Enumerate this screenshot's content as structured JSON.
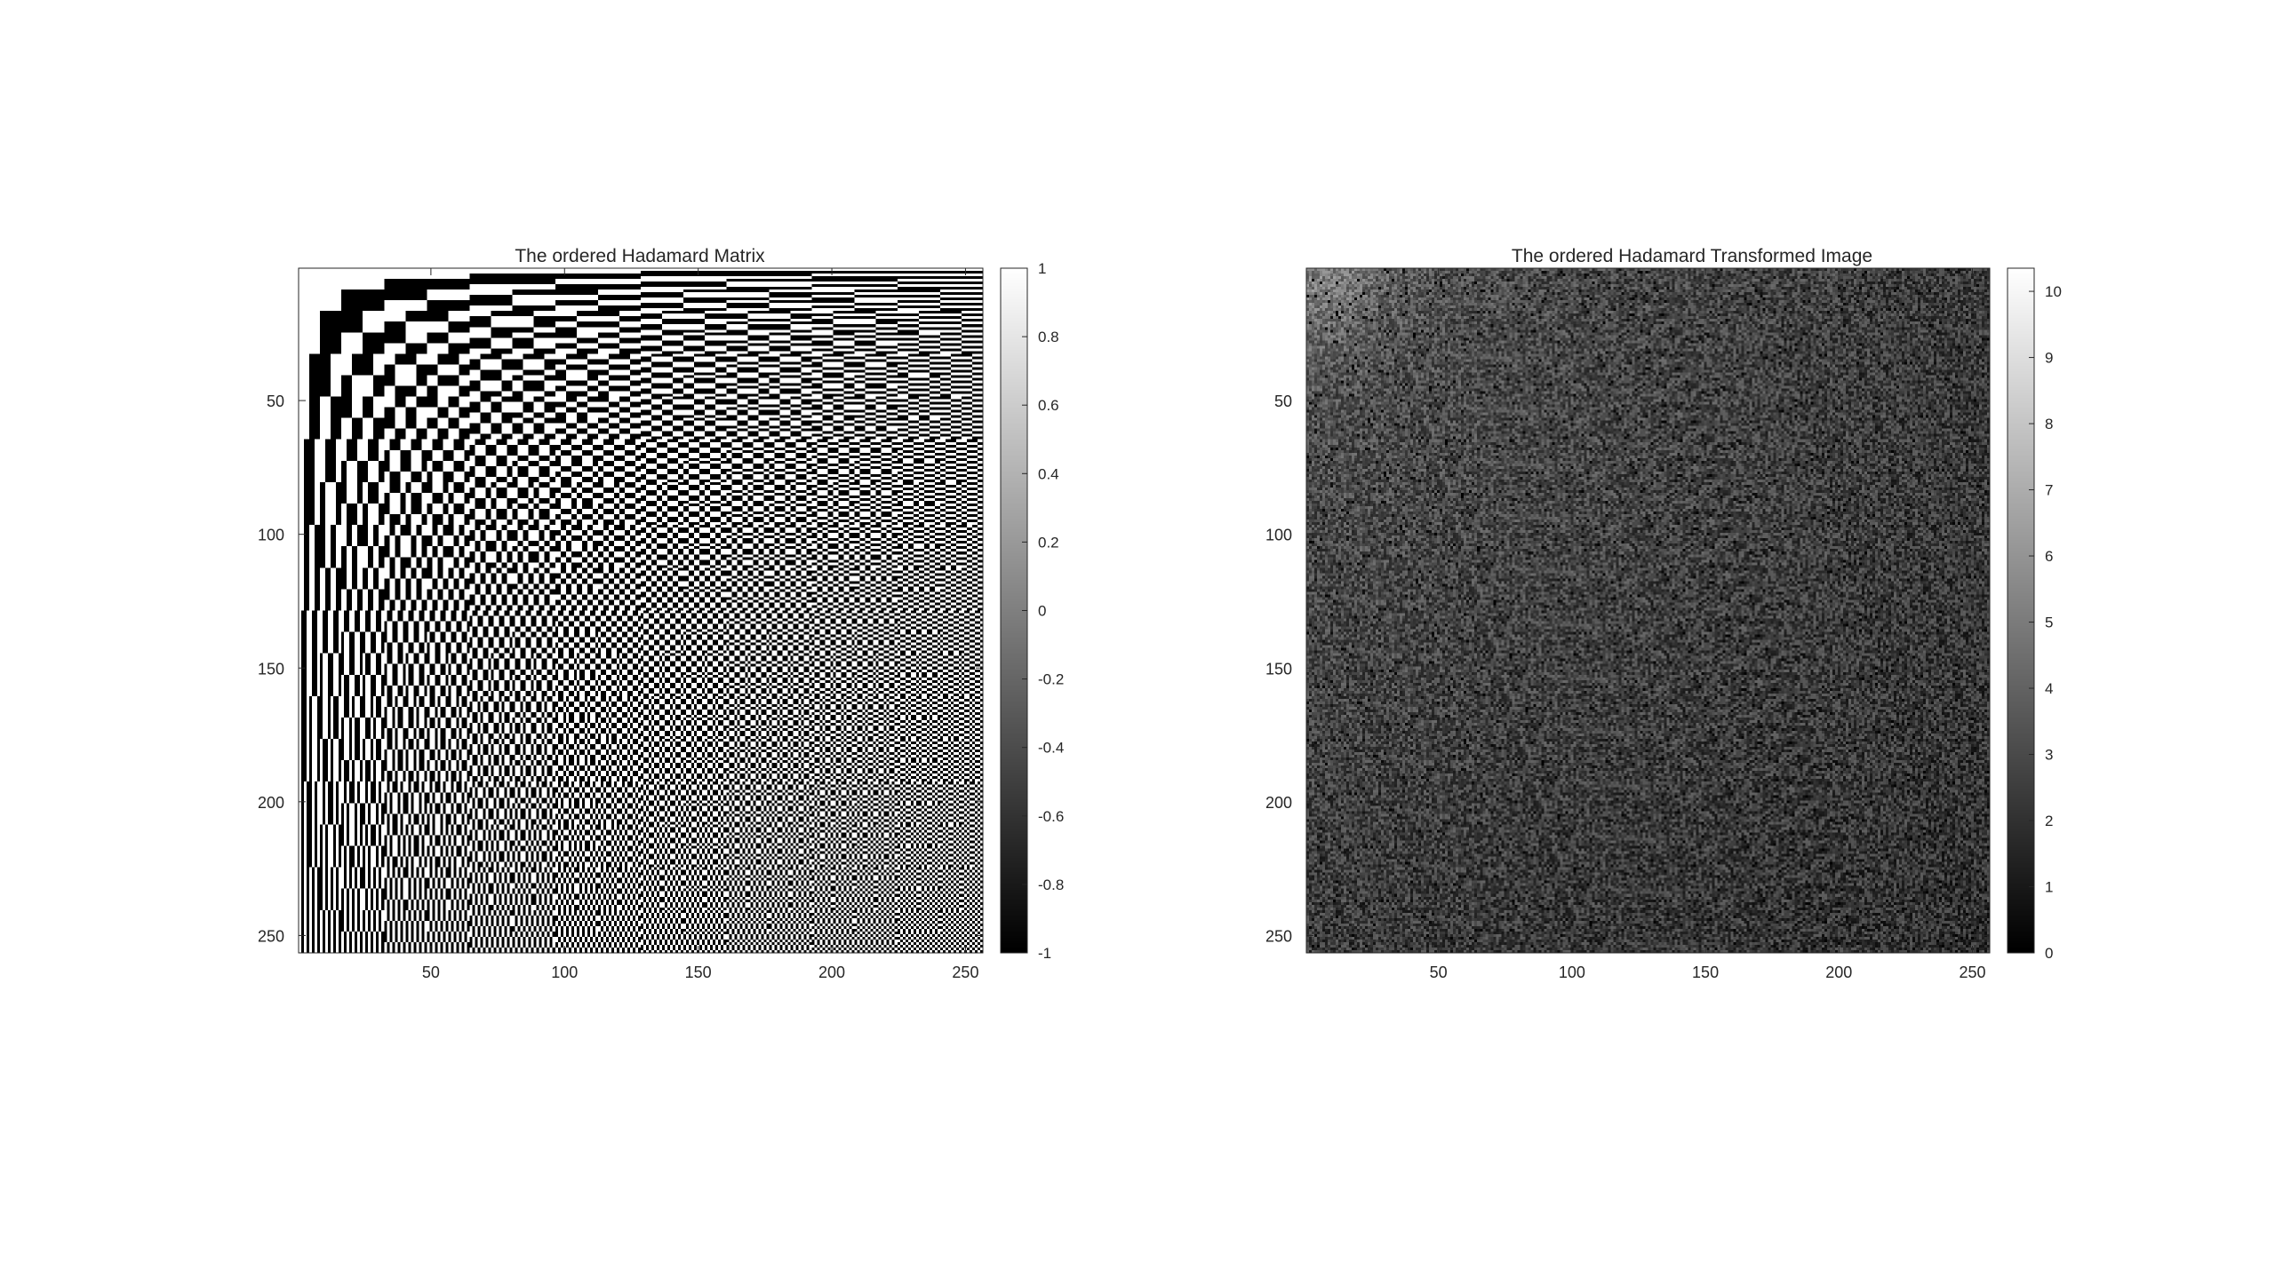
{
  "chart_data": [
    {
      "type": "heatmap",
      "title": "The ordered Hadamard Matrix",
      "xlabel": "",
      "ylabel": "",
      "size": 256,
      "xlim": [
        0.5,
        256.5
      ],
      "ylim": [
        0.5,
        256.5
      ],
      "xticks": [
        50,
        100,
        150,
        200,
        250
      ],
      "yticks": [
        50,
        100,
        150,
        200,
        250
      ],
      "colormap": "gray",
      "clim": [
        -1,
        1
      ],
      "colorbar_ticks": [
        1,
        0.8,
        0.6,
        0.4,
        0.2,
        0,
        -0.2,
        -0.4,
        -0.6,
        -0.8,
        -1
      ],
      "colorbar_labels": [
        "1",
        "0.8",
        "0.6",
        "0.4",
        "0.2",
        "0",
        "-0.2",
        "-0.4",
        "-0.6",
        "-0.8",
        "-1"
      ],
      "values_description": "sequency-ordered Walsh-Hadamard matrix of order 256 with entries +1 and -1"
    },
    {
      "type": "heatmap",
      "title": "The ordered Hadamard Transformed Image",
      "xlabel": "",
      "ylabel": "",
      "size": 256,
      "xlim": [
        0.5,
        256.5
      ],
      "ylim": [
        0.5,
        256.5
      ],
      "xticks": [
        50,
        100,
        150,
        200,
        250
      ],
      "yticks": [
        50,
        100,
        150,
        200,
        250
      ],
      "colormap": "gray",
      "clim": [
        0,
        10.35
      ],
      "colorbar_ticks": [
        10,
        9,
        8,
        7,
        6,
        5,
        4,
        3,
        2,
        1,
        0
      ],
      "colorbar_labels": [
        "10",
        "9",
        "8",
        "7",
        "6",
        "5",
        "4",
        "3",
        "2",
        "1",
        "0"
      ],
      "values_description": "log-magnitude transform coefficients, mostly around 2-4, brightest near the top-left corner"
    }
  ]
}
